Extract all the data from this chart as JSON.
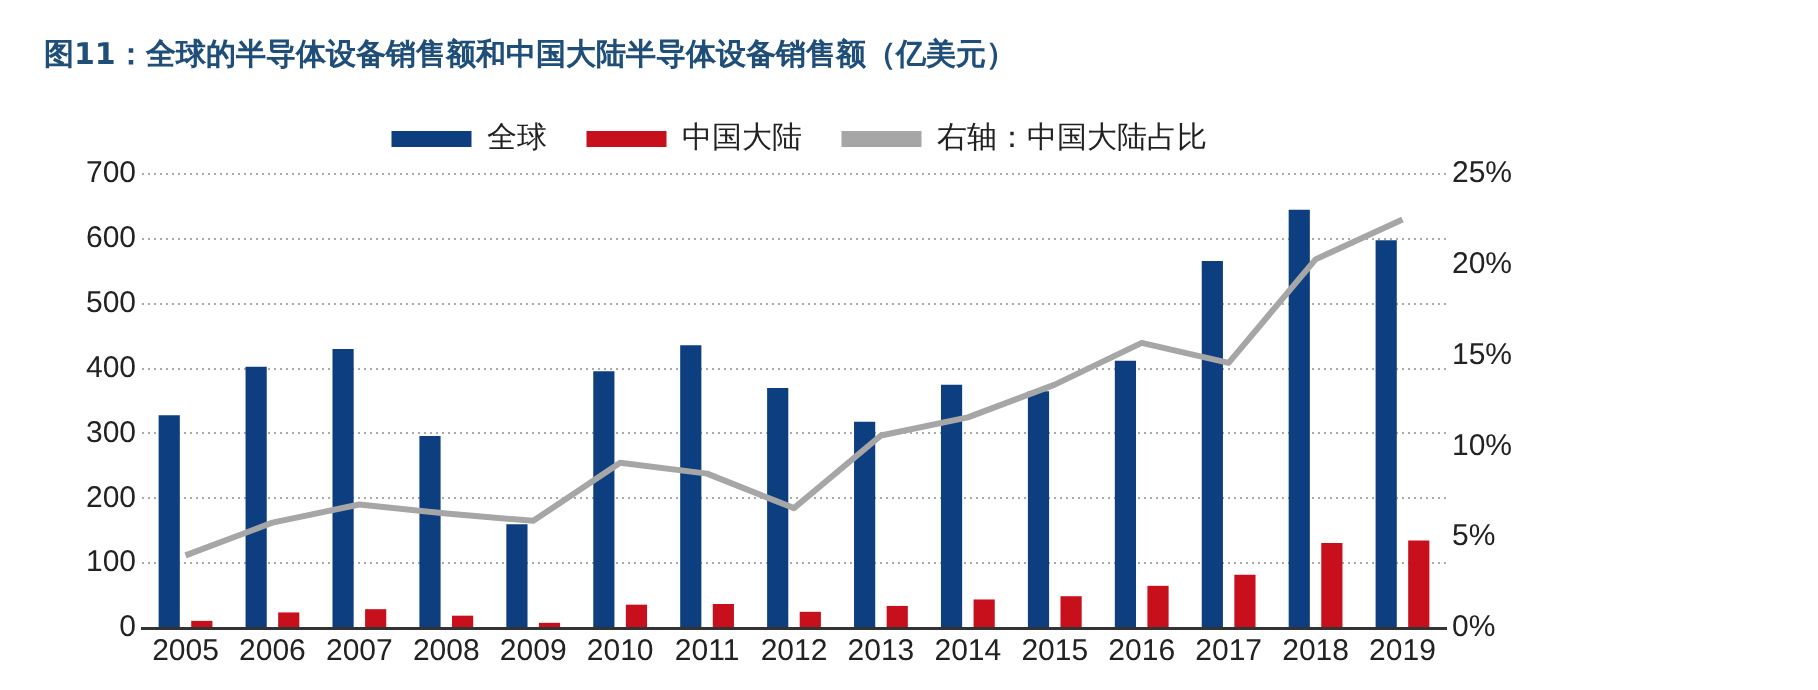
{
  "chart_data": {
    "type": "bar",
    "title": "图11：全球的半导体设备销售额和中国大陆半导体设备销售额（亿美元）",
    "categories": [
      "2005",
      "2006",
      "2007",
      "2008",
      "2009",
      "2010",
      "2011",
      "2012",
      "2013",
      "2014",
      "2015",
      "2016",
      "2017",
      "2018",
      "2019"
    ],
    "series": [
      {
        "name": "全球",
        "color": "#0d3f80",
        "values": [
          328,
          403,
          430,
          296,
          160,
          396,
          436,
          370,
          318,
          375,
          365,
          412,
          566,
          645,
          598
        ]
      },
      {
        "name": "中国大陆",
        "color": "#c8101c",
        "values": [
          11,
          24,
          29,
          19,
          8,
          36,
          37,
          25,
          34,
          44,
          49,
          65,
          82,
          131,
          135
        ]
      },
      {
        "name": "右轴：中国大陆占比",
        "type": "line",
        "axis": "y2",
        "color": "#a6a6a6",
        "values": [
          4.0,
          5.8,
          6.8,
          6.3,
          5.9,
          9.1,
          8.5,
          6.6,
          10.6,
          11.6,
          13.4,
          15.7,
          14.6,
          20.3,
          22.5
        ]
      }
    ],
    "ylim": [
      0,
      700
    ],
    "yticks": [
      0,
      100,
      200,
      300,
      400,
      500,
      600,
      700
    ],
    "y2lim": [
      0,
      25
    ],
    "y2ticks": [
      {
        "value": 0,
        "label": "0%"
      },
      {
        "value": 5,
        "label": "5%"
      },
      {
        "value": 10,
        "label": "10%"
      },
      {
        "value": 15,
        "label": "15%"
      },
      {
        "value": 20,
        "label": "20%"
      },
      {
        "value": 25,
        "label": "25%"
      }
    ],
    "grid": "y",
    "legend": "top",
    "marker": "none",
    "line_style": "solid"
  }
}
